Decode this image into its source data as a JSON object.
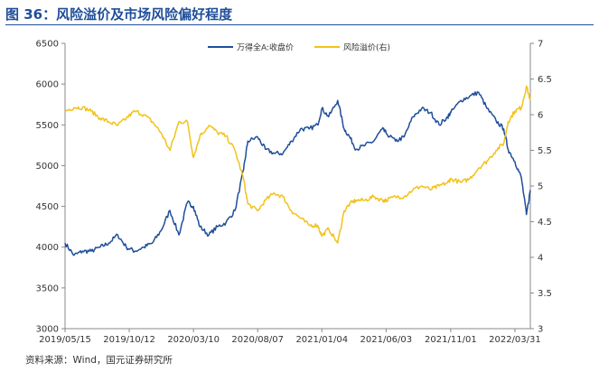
{
  "figure": {
    "title": "图 36：风险溢价及市场风险偏好程度",
    "source": "资料来源：Wind，国元证券研究所"
  },
  "colors": {
    "left_series": "#1f4e9a",
    "right_series": "#f2c21a",
    "axis": "#888888",
    "title": "#1f4e9a"
  },
  "chart_data": {
    "type": "line",
    "title": "图 36：风险溢价及市场风险偏好程度",
    "x_tick_labels": [
      "2019/05/15",
      "2019/10/12",
      "2020/03/10",
      "2020/08/07",
      "2021/01/04",
      "2021/06/03",
      "2021/11/01",
      "2022/03/31"
    ],
    "x_range": [
      "2019/05/15",
      "2022/05/06"
    ],
    "y_left": {
      "min": 3000,
      "max": 6500,
      "ticks": [
        3000,
        3500,
        4000,
        4500,
        5000,
        5500,
        6000,
        6500
      ]
    },
    "y_right": {
      "min": 3,
      "max": 7,
      "ticks": [
        "3",
        "3.5",
        "4",
        "4.5",
        "5",
        "5.5",
        "6",
        "6.5",
        "7"
      ]
    },
    "grid": false,
    "legend_position": "top",
    "series": [
      {
        "name": "万得全A:收盘价",
        "axis": "left",
        "x": [
          "2019/05/15",
          "2019/06/05",
          "2019/06/25",
          "2019/07/15",
          "2019/08/05",
          "2019/08/25",
          "2019/09/15",
          "2019/10/05",
          "2019/10/25",
          "2019/11/15",
          "2019/12/05",
          "2019/12/25",
          "2020/01/15",
          "2020/02/05",
          "2020/02/25",
          "2020/03/10",
          "2020/03/25",
          "2020/04/15",
          "2020/05/05",
          "2020/05/25",
          "2020/06/15",
          "2020/07/05",
          "2020/07/15",
          "2020/08/07",
          "2020/08/25",
          "2020/09/15",
          "2020/10/05",
          "2020/10/25",
          "2020/11/15",
          "2020/12/05",
          "2020/12/25",
          "2021/01/04",
          "2021/01/20",
          "2021/02/10",
          "2021/02/25",
          "2021/03/10",
          "2021/03/25",
          "2021/04/15",
          "2021/05/05",
          "2021/05/25",
          "2021/06/03",
          "2021/06/25",
          "2021/07/15",
          "2021/08/05",
          "2021/08/25",
          "2021/09/15",
          "2021/10/05",
          "2021/10/25",
          "2021/11/01",
          "2021/11/25",
          "2021/12/15",
          "2022/01/05",
          "2022/01/25",
          "2022/02/15",
          "2022/03/05",
          "2022/03/15",
          "2022/03/31",
          "2022/04/15",
          "2022/04/27",
          "2022/05/06"
        ],
        "y": [
          4050,
          3900,
          3950,
          3950,
          4000,
          4050,
          4150,
          4000,
          3950,
          4000,
          4050,
          4200,
          4450,
          4150,
          4550,
          4500,
          4250,
          4150,
          4250,
          4300,
          4450,
          4950,
          5300,
          5350,
          5200,
          5150,
          5150,
          5300,
          5450,
          5450,
          5500,
          5700,
          5600,
          5800,
          5450,
          5350,
          5200,
          5250,
          5300,
          5450,
          5400,
          5300,
          5350,
          5600,
          5700,
          5650,
          5500,
          5600,
          5650,
          5800,
          5850,
          5900,
          5700,
          5550,
          5450,
          5200,
          5050,
          4850,
          4400,
          4700
        ]
      },
      {
        "name": "风险溢价(右)",
        "axis": "right",
        "x": [
          "2019/05/15",
          "2019/06/05",
          "2019/06/25",
          "2019/07/15",
          "2019/08/05",
          "2019/08/25",
          "2019/09/15",
          "2019/10/05",
          "2019/10/25",
          "2019/11/15",
          "2019/12/05",
          "2019/12/25",
          "2020/01/15",
          "2020/02/05",
          "2020/02/25",
          "2020/03/10",
          "2020/03/25",
          "2020/04/15",
          "2020/05/05",
          "2020/05/25",
          "2020/06/15",
          "2020/07/05",
          "2020/07/15",
          "2020/08/07",
          "2020/08/25",
          "2020/09/15",
          "2020/10/05",
          "2020/10/25",
          "2020/11/15",
          "2020/12/05",
          "2020/12/25",
          "2021/01/04",
          "2021/01/20",
          "2021/02/10",
          "2021/02/25",
          "2021/03/10",
          "2021/03/25",
          "2021/04/15",
          "2021/05/05",
          "2021/05/25",
          "2021/06/03",
          "2021/06/25",
          "2021/07/15",
          "2021/08/05",
          "2021/08/25",
          "2021/09/15",
          "2021/10/05",
          "2021/10/25",
          "2021/11/01",
          "2021/11/25",
          "2021/12/15",
          "2022/01/05",
          "2022/01/25",
          "2022/02/15",
          "2022/03/05",
          "2022/03/15",
          "2022/03/31",
          "2022/04/15",
          "2022/04/27",
          "2022/05/06"
        ],
        "y": [
          6.05,
          6.1,
          6.1,
          6.05,
          5.95,
          5.9,
          5.85,
          5.95,
          6.05,
          6.0,
          5.9,
          5.75,
          5.5,
          5.9,
          5.9,
          5.4,
          5.7,
          5.85,
          5.75,
          5.7,
          5.5,
          5.1,
          4.75,
          4.65,
          4.8,
          4.9,
          4.85,
          4.65,
          4.55,
          4.45,
          4.45,
          4.3,
          4.4,
          4.2,
          4.65,
          4.75,
          4.8,
          4.8,
          4.85,
          4.8,
          4.8,
          4.85,
          4.85,
          4.95,
          5.0,
          4.95,
          5.0,
          5.05,
          5.1,
          5.05,
          5.1,
          5.25,
          5.35,
          5.5,
          5.6,
          5.9,
          6.05,
          6.1,
          6.4,
          6.2
        ]
      }
    ]
  }
}
